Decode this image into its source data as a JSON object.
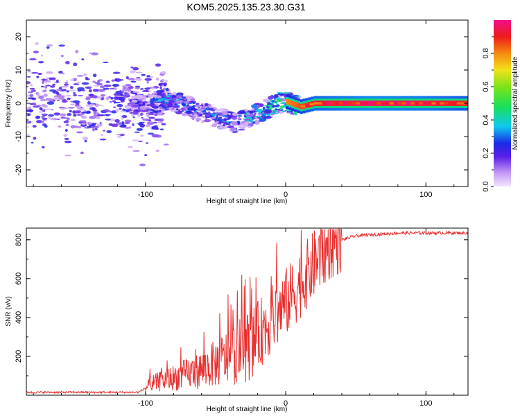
{
  "title": "KOM5.2025.135.23.30.G31",
  "chart_data": [
    {
      "type": "heatmap",
      "xlabel": "Height of straight line (km)",
      "ylabel": "Frequency (Hz)",
      "xlim": [
        -185,
        130
      ],
      "ylim": [
        -25,
        25
      ],
      "xticks": [
        -100,
        0,
        100
      ],
      "yticks": [
        -20,
        -10,
        0,
        10,
        20
      ],
      "colorbar": {
        "label": "Normalized spectral amplitude",
        "range": [
          0,
          1
        ],
        "ticks": [
          0.0,
          0.2,
          0.4,
          0.6,
          0.8
        ]
      },
      "ridge": {
        "description_points": [
          {
            "x": -180,
            "y": 1
          },
          {
            "x": -150,
            "y": 0
          },
          {
            "x": -120,
            "y": 0
          },
          {
            "x": -100,
            "y": -1
          },
          {
            "x": -85,
            "y": 1.5
          },
          {
            "x": -70,
            "y": -1
          },
          {
            "x": -50,
            "y": -4
          },
          {
            "x": -35,
            "y": -6
          },
          {
            "x": -20,
            "y": -3
          },
          {
            "x": -5,
            "y": 0
          },
          {
            "x": 0,
            "y": 0.5
          },
          {
            "x": 10,
            "y": -1
          },
          {
            "x": 20,
            "y": 0
          },
          {
            "x": 130,
            "y": 0
          }
        ],
        "amplitude": [
          {
            "x": -180,
            "a": 0.2
          },
          {
            "x": -110,
            "a": 0.25
          },
          {
            "x": -90,
            "a": 0.4
          },
          {
            "x": -50,
            "a": 0.35
          },
          {
            "x": -20,
            "a": 0.45
          },
          {
            "x": 0,
            "a": 0.55
          },
          {
            "x": 20,
            "a": 0.75
          },
          {
            "x": 60,
            "a": 0.85
          },
          {
            "x": 100,
            "a": 0.8
          },
          {
            "x": 130,
            "a": 0.7
          }
        ]
      },
      "grid": false
    },
    {
      "type": "line",
      "xlabel": "Height of straight line (km)",
      "ylabel": "SNR (v/v)",
      "xlim": [
        -185,
        130
      ],
      "ylim": [
        0,
        860
      ],
      "xticks": [
        -100,
        0,
        100
      ],
      "yticks": [
        200,
        400,
        600,
        800
      ],
      "grid": false,
      "series": [
        {
          "color": "#e83030",
          "trend": [
            {
              "x": -185,
              "y": 15
            },
            {
              "x": -105,
              "y": 15
            },
            {
              "x": -95,
              "y": 60
            },
            {
              "x": -80,
              "y": 90
            },
            {
              "x": -60,
              "y": 130
            },
            {
              "x": -40,
              "y": 200
            },
            {
              "x": -25,
              "y": 260
            },
            {
              "x": -15,
              "y": 350
            },
            {
              "x": -5,
              "y": 430
            },
            {
              "x": 5,
              "y": 520
            },
            {
              "x": 15,
              "y": 620
            },
            {
              "x": 25,
              "y": 720
            },
            {
              "x": 35,
              "y": 790
            },
            {
              "x": 50,
              "y": 820
            },
            {
              "x": 80,
              "y": 835
            },
            {
              "x": 130,
              "y": 835
            }
          ]
        }
      ]
    }
  ]
}
